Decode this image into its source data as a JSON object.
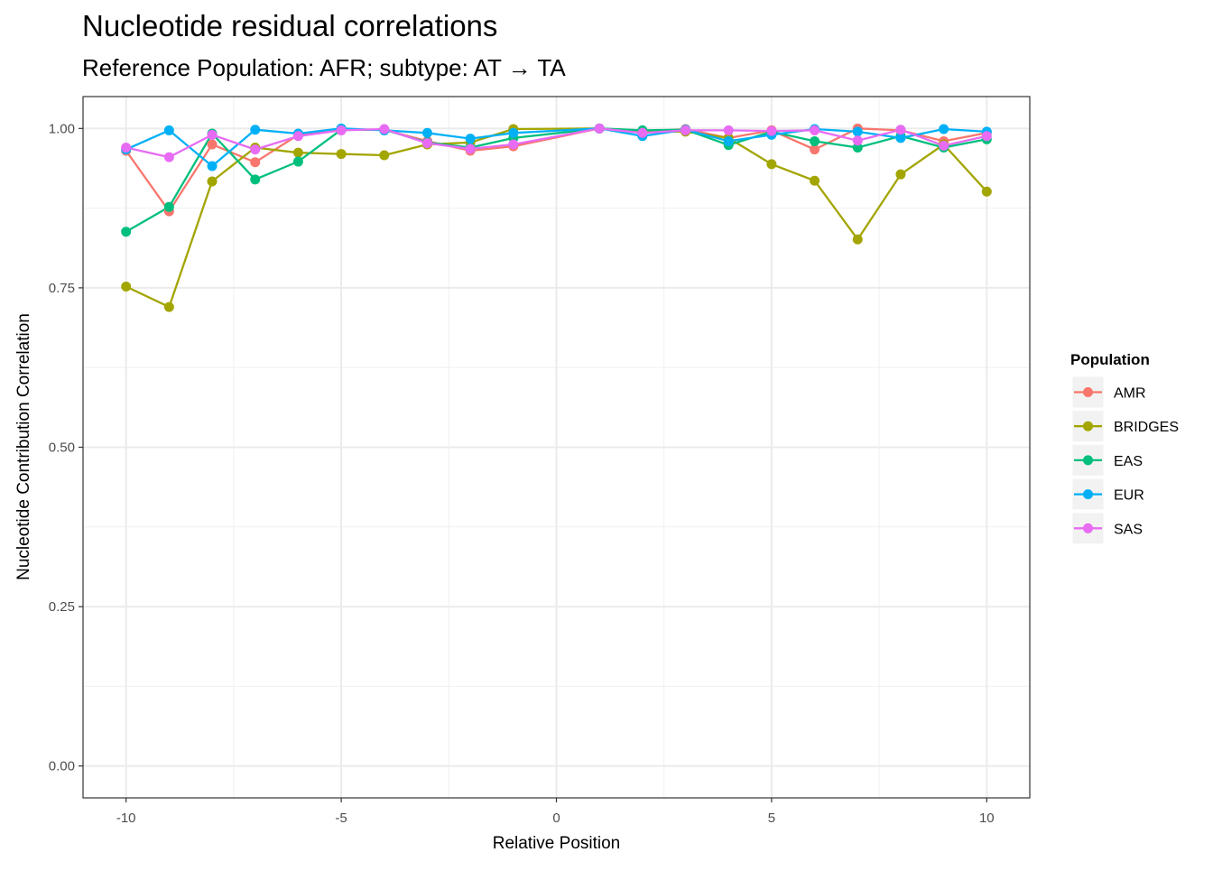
{
  "chart_data": {
    "type": "line",
    "title": "Nucleotide residual correlations",
    "subtitle": "Reference Population: AFR; subtype: AT → TA",
    "xlabel": "Relative Position",
    "ylabel": "Nucleotide Contribution Correlation",
    "xlim": [
      -11,
      11
    ],
    "ylim": [
      -0.05,
      1.05
    ],
    "x_ticks": [
      -10,
      -5,
      0,
      5,
      10
    ],
    "x_tick_labels": [
      "-10",
      "-5",
      "0",
      "5",
      "10"
    ],
    "y_ticks": [
      0,
      0.25,
      0.5,
      0.75,
      1.0
    ],
    "y_tick_labels": [
      "0.00",
      "0.25",
      "0.50",
      "0.75",
      "1.00"
    ],
    "grid": true,
    "legend": {
      "title": "Population",
      "position": "right"
    },
    "x": [
      -10,
      -9,
      -8,
      -7,
      -6,
      -5,
      -4,
      -3,
      -2,
      -1,
      1,
      2,
      3,
      4,
      5,
      6,
      7,
      8,
      9,
      10
    ],
    "series": [
      {
        "name": "AMR",
        "color": "#F8766D",
        "values": [
          0.965,
          0.87,
          0.975,
          0.947,
          0.99,
          0.998,
          0.998,
          0.98,
          0.965,
          0.972,
          1.0,
          0.995,
          0.999,
          0.985,
          0.997,
          0.967,
          1.0,
          0.997,
          0.98,
          0.993
        ]
      },
      {
        "name": "BRIDGES",
        "color": "#A3A500",
        "values": [
          0.752,
          0.72,
          0.917,
          0.97,
          0.962,
          0.96,
          0.958,
          0.975,
          0.978,
          0.999,
          1.0,
          0.995,
          0.995,
          0.985,
          0.944,
          0.918,
          0.826,
          0.928,
          0.975,
          0.901
        ]
      },
      {
        "name": "EAS",
        "color": "#00BF7D",
        "values": [
          0.838,
          0.877,
          0.992,
          0.92,
          0.948,
          0.998,
          0.998,
          0.978,
          0.97,
          0.985,
          1.0,
          0.997,
          0.998,
          0.974,
          0.995,
          0.98,
          0.97,
          0.988,
          0.97,
          0.983
        ]
      },
      {
        "name": "EUR",
        "color": "#00B0F6",
        "values": [
          0.967,
          0.997,
          0.941,
          0.998,
          0.992,
          1.0,
          0.997,
          0.993,
          0.984,
          0.993,
          1.0,
          0.988,
          0.998,
          0.98,
          0.99,
          0.999,
          0.995,
          0.985,
          0.999,
          0.995
        ]
      },
      {
        "name": "SAS",
        "color": "#E76BF3",
        "values": [
          0.97,
          0.955,
          0.99,
          0.967,
          0.988,
          0.997,
          0.999,
          0.977,
          0.968,
          0.975,
          1.0,
          0.993,
          0.997,
          0.997,
          0.996,
          0.997,
          0.981,
          0.998,
          0.973,
          0.988
        ]
      }
    ]
  }
}
